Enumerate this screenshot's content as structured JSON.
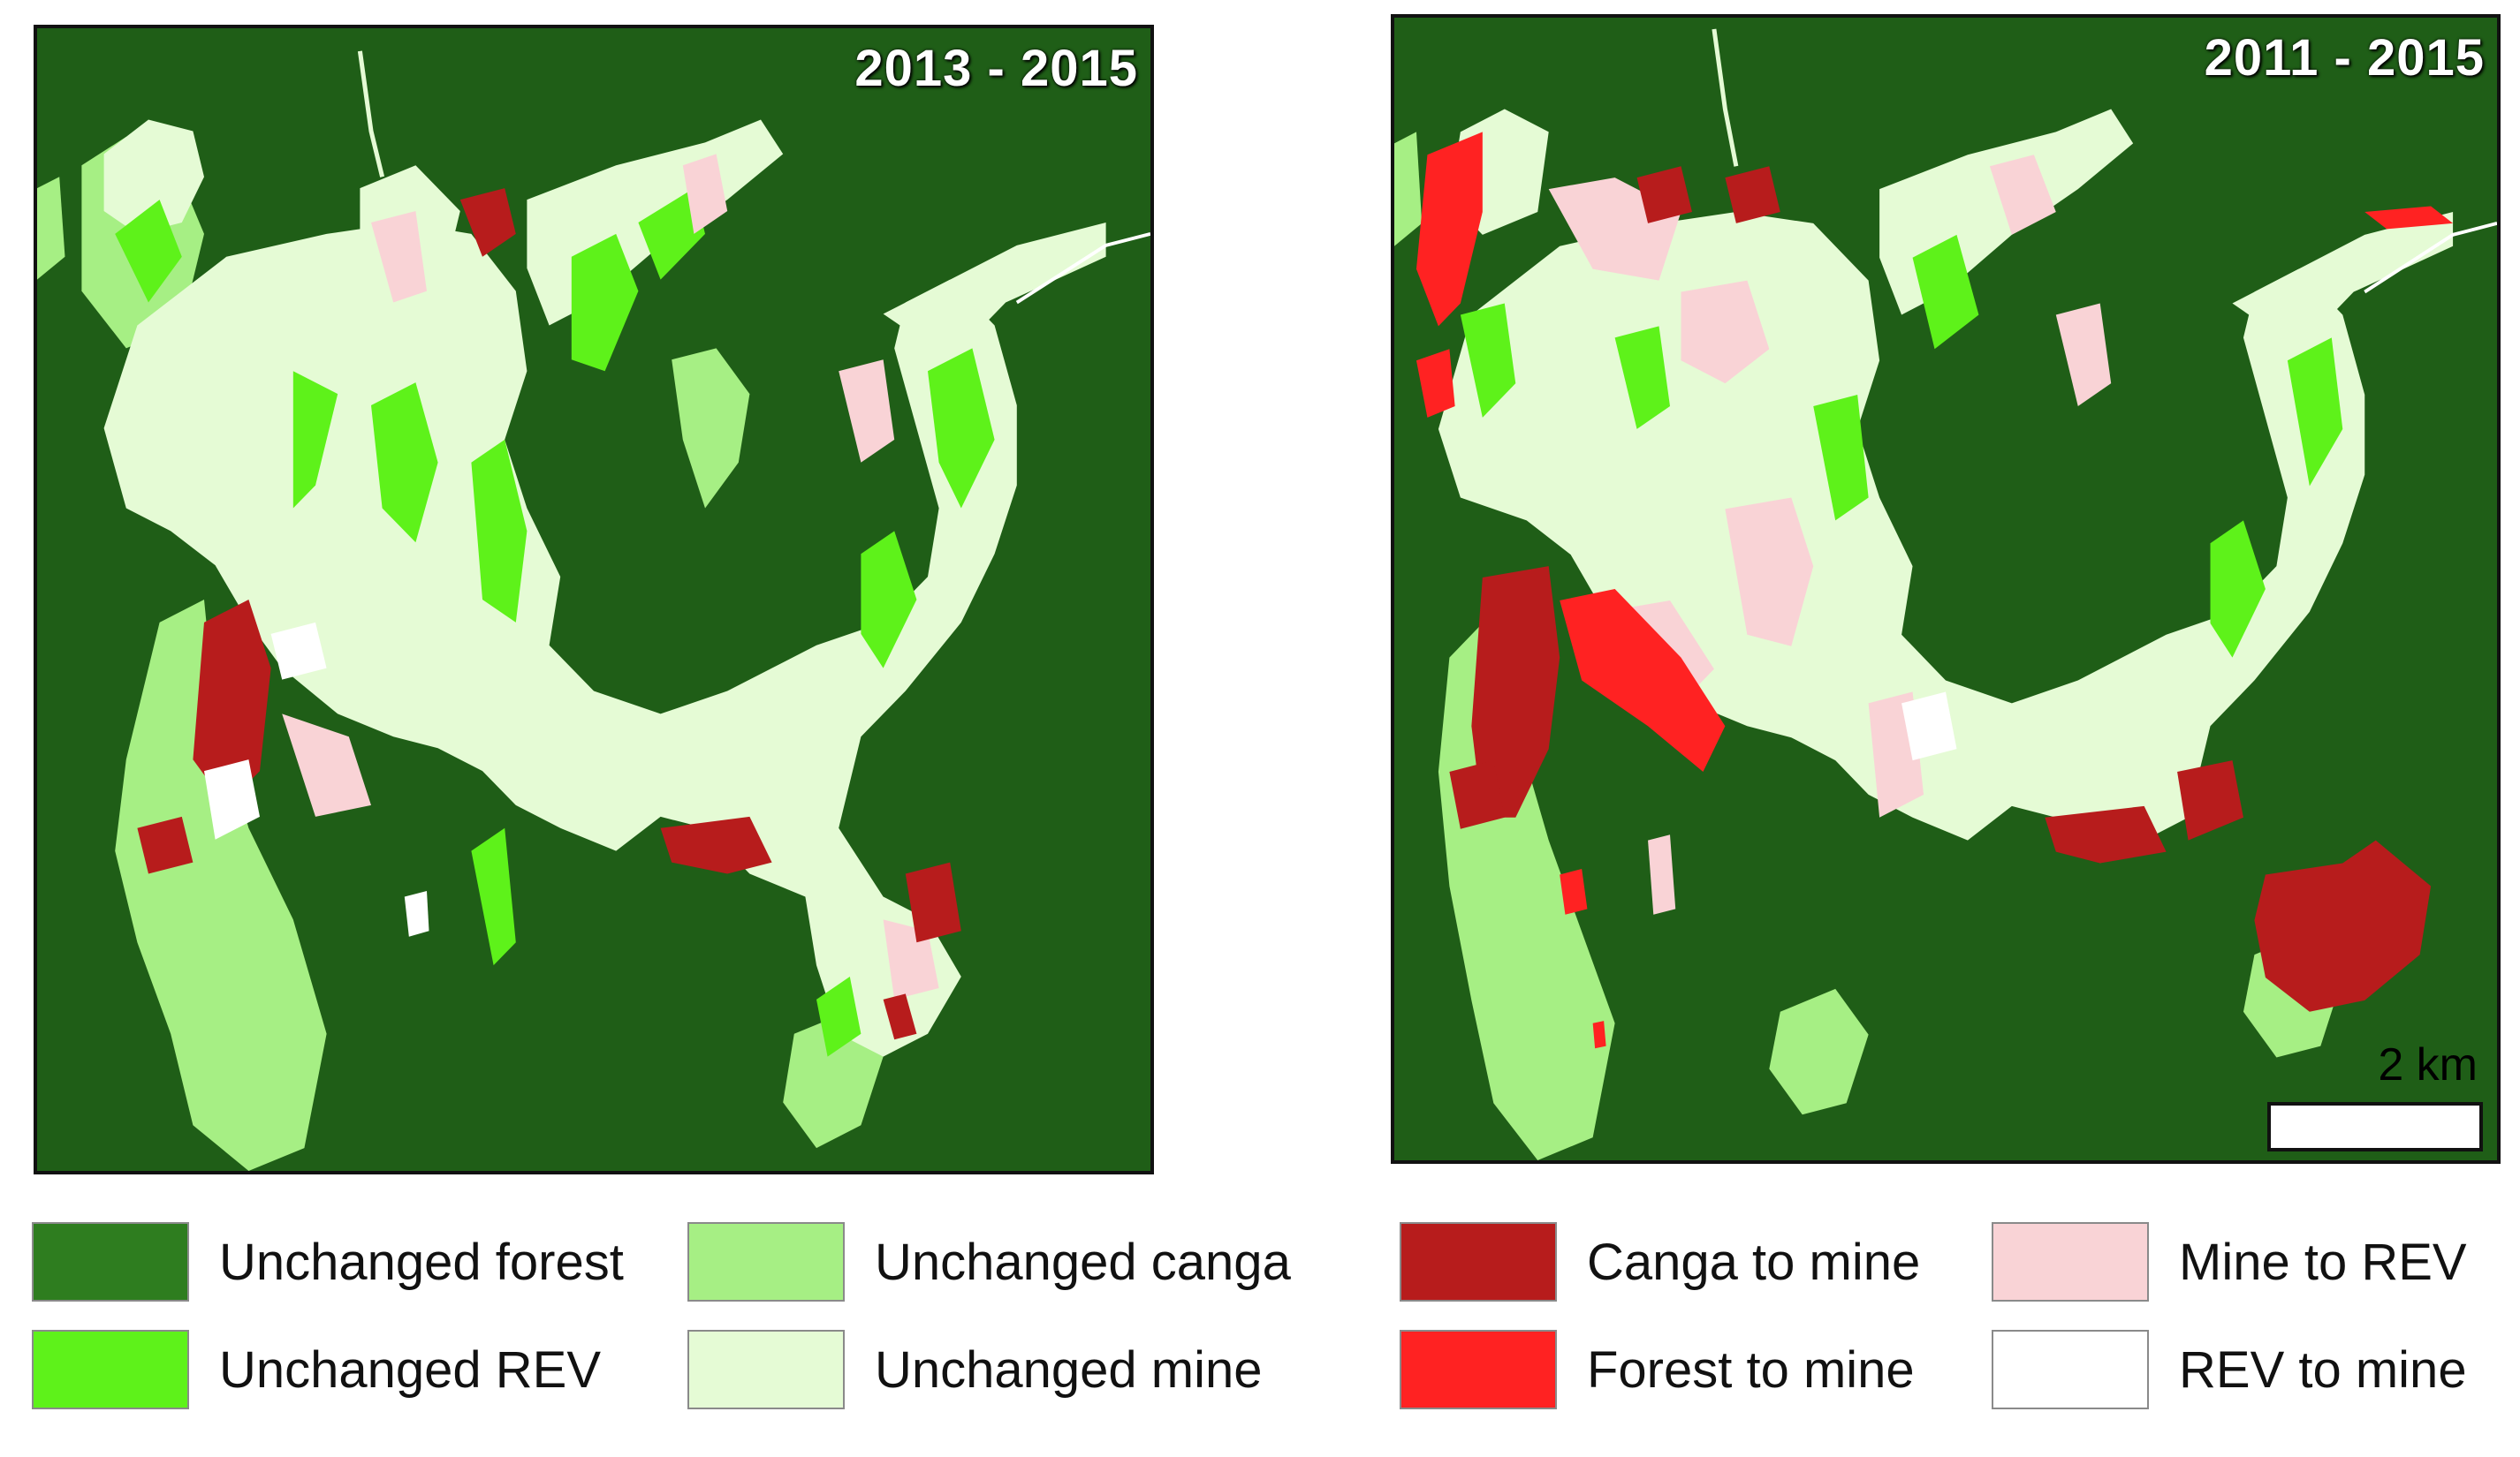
{
  "maps": [
    {
      "period_label": "2013 - 2015"
    },
    {
      "period_label": "2011 - 2015",
      "scale_bar_label": "2 km"
    }
  ],
  "legend": {
    "items": [
      {
        "label": "Unchanged forest",
        "color": "#2e7d1f"
      },
      {
        "label": "Unchanged canga",
        "color": "#a6ef84"
      },
      {
        "label": "Canga to mine",
        "color": "#b71c1c"
      },
      {
        "label": "Mine to REV",
        "color": "#f9d3d6"
      },
      {
        "label": "Unchanged REV",
        "color": "#5ef21a"
      },
      {
        "label": "Unchanged mine",
        "color": "#e5fbd5"
      },
      {
        "label": "Forest to mine",
        "color": "#ff2222"
      },
      {
        "label": "REV to mine",
        "color": "#ffffff"
      }
    ]
  }
}
